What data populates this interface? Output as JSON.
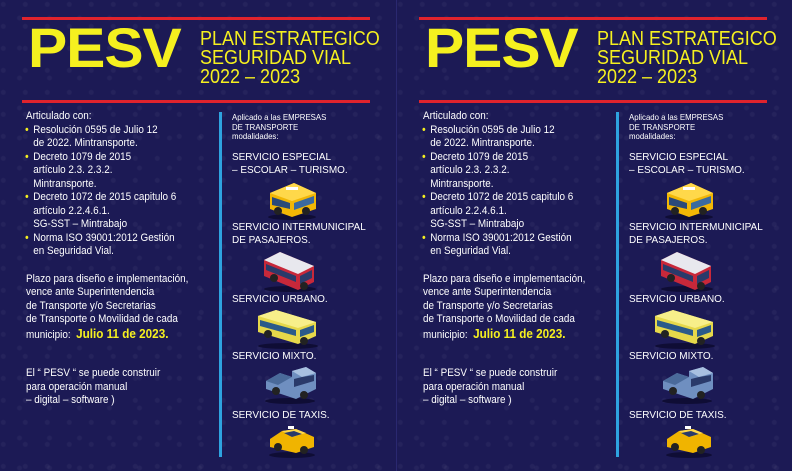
{
  "panels": [
    {
      "logo": "PESV",
      "title_lines": [
        "PLAN ESTRATEGICO",
        "SEGURIDAD VIAL",
        "2022 – 2023"
      ],
      "articulado_head": "Articulado con:",
      "bullets": [
        [
          "Resolución 0595 de Julio 12",
          "de 2022. Mintransporte."
        ],
        [
          "Decreto 1079 de 2015",
          "artículo 2.3. 2.3.2.",
          "Mintransporte."
        ],
        [
          "Decreto 1072 de 2015 capitulo 6",
          "artículo 2.2.4.6.1.",
          "SG-SST – Mintrabajo"
        ],
        [
          "Norma ISO 39001:2012 Gestión",
          "en Seguridad Vial."
        ]
      ],
      "plazo_lines": [
        "Plazo para diseño e implementación,",
        "vence ante Superintendencia",
        "de Transporte y/o  Secretarias",
        "de Transporte o Movilidad de cada"
      ],
      "plazo_last": "municipio:",
      "fecha": "Julio 11 de 2023.",
      "pesv_note": [
        "El “ PESV “ se puede construir",
        "para operación  manual",
        "– digital –  software )"
      ],
      "aplicado": [
        "Aplicado a las EMPRESAS",
        "DE TRANSPORTE",
        "modalidades:"
      ],
      "servicios": [
        [
          "SERVICIO ESPECIAL",
          "– ESCOLAR – TURISMO."
        ],
        [
          "SERVICIO INTERMUNICIPAL",
          "DE PASAJEROS."
        ],
        [
          "SERVICIO URBANO."
        ],
        [
          "SERVICIO MIXTO."
        ],
        [
          "SERVICIO DE TAXIS."
        ]
      ]
    },
    {
      "logo": "PESV",
      "title_lines": [
        "PLAN ESTRATEGICO",
        "SEGURIDAD VIAL",
        "2022 – 2023"
      ],
      "articulado_head": "Articulado con:",
      "bullets": [
        [
          "Resolución 0595 de Julio 12",
          "de 2022. Mintransporte."
        ],
        [
          "Decreto 1079 de 2015",
          "artículo 2.3. 2.3.2.",
          "Mintransporte."
        ],
        [
          "Decreto 1072 de 2015 capitulo 6",
          "artículo 2.2.4.6.1.",
          "SG-SST – Mintrabajo"
        ],
        [
          "Norma ISO 39001:2012 Gestión",
          "en Seguridad Vial."
        ]
      ],
      "plazo_lines": [
        "Plazo para diseño e implementación,",
        "vence ante Superintendencia",
        "de Transporte y/o  Secretarias",
        "de Transporte o Movilidad de cada"
      ],
      "plazo_last": "municipio:",
      "fecha": "Julio 11 de 2023.",
      "pesv_note": [
        "El “ PESV “ se puede construir",
        "para operación  manual",
        "– digital –  software )"
      ],
      "aplicado": [
        "Aplicado a las EMPRESAS",
        "DE TRANSPORTE",
        "modalidades:"
      ],
      "servicios": [
        [
          "SERVICIO ESPECIAL",
          "– ESCOLAR – TURISMO."
        ],
        [
          "SERVICIO INTERMUNICIPAL",
          "DE PASAJEROS."
        ],
        [
          "SERVICIO URBANO."
        ],
        [
          "SERVICIO MIXTO."
        ],
        [
          "SERVICIO DE TAXIS."
        ]
      ]
    }
  ],
  "colors": {
    "background": "#1c1a55",
    "accent_yellow": "#f5f01f",
    "rule_red": "#e0232d",
    "divider_blue": "#2ea3e0"
  },
  "icons": [
    "school-van-icon",
    "intercity-bus-icon",
    "city-bus-icon",
    "pickup-truck-icon",
    "taxi-icon"
  ]
}
